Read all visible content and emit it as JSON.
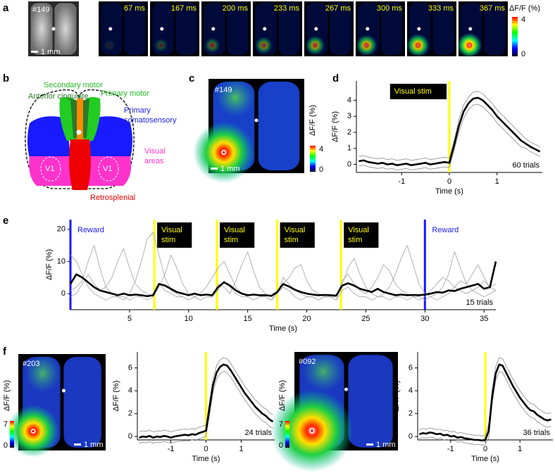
{
  "panel_labels": [
    "a",
    "b",
    "c",
    "d",
    "e",
    "f"
  ],
  "panel_a": {
    "reference": {
      "mouse_id": "#149",
      "scale_bar": "1 mm"
    },
    "frames": [
      "67 ms",
      "167 ms",
      "200 ms",
      "233 ms",
      "267 ms",
      "300 ms",
      "333 ms",
      "367 ms"
    ],
    "colorbar": {
      "label": "ΔF/F (%)",
      "max": 4,
      "min": 0
    }
  },
  "panel_b": {
    "secondary_motor": "Secondary motor",
    "anterior_cingulate": "Anterior cingulate",
    "primary_motor": "Primary motor",
    "somatosensory": [
      "Primary",
      "somatosensory"
    ],
    "visual": [
      "Visual",
      "areas"
    ],
    "v1": [
      "V1",
      "V1"
    ],
    "retrosplenial": "Retrosplenial"
  },
  "panel_c": {
    "mouse_id": "#149",
    "scale_bar": "1 mm",
    "colorbar": {
      "label": "ΔF/F (%)",
      "max": 4,
      "min": 0
    }
  },
  "panel_f": [
    {
      "mouse_id": "#203",
      "scale_bar": "1 mm",
      "colorbar": {
        "label": "ΔF/F (%)",
        "max": 7,
        "min": 0
      }
    },
    {
      "mouse_id": "#092",
      "scale_bar": "1 mm",
      "colorbar": {
        "label": "ΔF/F (%)",
        "max": 7,
        "min": 0
      }
    }
  ],
  "chart_data": [
    {
      "type": "line",
      "xlabel": "Time (s)",
      "ylabel": "ΔF/F (%)",
      "note": "60 trials",
      "xlim": [
        -1.95,
        1.95
      ],
      "ylim": [
        -0.5,
        5.2
      ],
      "xticks": [
        -1,
        0,
        1
      ],
      "yticks": [
        0,
        1,
        2,
        3,
        4
      ],
      "vlines": [
        {
          "x": 0,
          "color": "#ffff00",
          "label_lines": [
            "Visual stim"
          ],
          "boxed": true,
          "label_side": "left"
        }
      ],
      "x": [
        -1.9,
        -1.8,
        -1.7,
        -1.6,
        -1.5,
        -1.4,
        -1.3,
        -1.2,
        -1.1,
        -1,
        -0.9,
        -0.8,
        -0.7,
        -0.6,
        -0.5,
        -0.4,
        -0.3,
        -0.2,
        -0.1,
        0,
        0.1,
        0.2,
        0.3,
        0.4,
        0.5,
        0.6,
        0.7,
        0.8,
        0.9,
        1,
        1.1,
        1.2,
        1.3,
        1.4,
        1.5,
        1.6,
        1.7,
        1.8,
        1.9
      ],
      "series": [
        {
          "color": "#888888",
          "values": [
            0.5,
            0.55,
            0.45,
            0.4,
            0.35,
            0.4,
            0.3,
            0.35,
            0.25,
            0.3,
            0.35,
            0.25,
            0.3,
            0.35,
            0.4,
            0.3,
            0.35,
            0.4,
            0.45,
            0.4,
            1.5,
            2.8,
            3.7,
            4.2,
            4.5,
            4.55,
            4.4,
            4.1,
            3.8,
            3.4,
            3.1,
            2.8,
            2.5,
            2.2,
            1.9,
            1.6,
            1.4,
            1.25,
            1.1
          ]
        },
        {
          "color": "#888888",
          "values": [
            -0.1,
            -0.05,
            -0.15,
            -0.2,
            -0.25,
            -0.2,
            -0.3,
            -0.25,
            -0.35,
            -0.3,
            -0.25,
            -0.35,
            -0.3,
            -0.25,
            -0.2,
            -0.3,
            -0.25,
            -0.2,
            -0.15,
            -0.2,
            0.9,
            2,
            2.9,
            3.4,
            3.7,
            3.75,
            3.6,
            3.3,
            3,
            2.6,
            2.3,
            2,
            1.7,
            1.4,
            1.1,
            1,
            0.8,
            0.65,
            0.5
          ]
        },
        {
          "color": "#000000",
          "values": [
            0.2,
            0.25,
            0.15,
            0.1,
            0.05,
            0.1,
            0,
            0.05,
            -0.05,
            0,
            0.05,
            -0.05,
            0,
            0.05,
            0.1,
            0,
            0.05,
            0.1,
            0.15,
            0.1,
            1.2,
            2.4,
            3.3,
            3.8,
            4.1,
            4.15,
            4,
            3.7,
            3.4,
            3,
            2.7,
            2.4,
            2.1,
            1.8,
            1.5,
            1.3,
            1.1,
            0.95,
            0.8
          ]
        }
      ]
    },
    {
      "type": "line",
      "xlabel": "Time (s)",
      "ylabel": "ΔF/F (%)",
      "note": "15 trials",
      "xlim": [
        0,
        36
      ],
      "ylim": [
        -5,
        23
      ],
      "xticks": [
        5,
        10,
        15,
        20,
        25,
        30,
        35
      ],
      "yticks": [
        0,
        10,
        20
      ],
      "vlines": [
        {
          "x": 0,
          "color": "#1a1aff",
          "label_lines": [
            "Reward"
          ],
          "boxed": false,
          "label_side": "right"
        },
        {
          "x": 7.1,
          "color": "#ffff00",
          "label_lines": [
            "Visual",
            "stim"
          ],
          "boxed": true,
          "label_side": "right"
        },
        {
          "x": 12.4,
          "color": "#ffff00",
          "label_lines": [
            "Visual",
            "stim"
          ],
          "boxed": true,
          "label_side": "right"
        },
        {
          "x": 17.5,
          "color": "#ffff00",
          "label_lines": [
            "Visual",
            "stim"
          ],
          "boxed": true,
          "label_side": "right"
        },
        {
          "x": 22.9,
          "color": "#ffff00",
          "label_lines": [
            "Visual",
            "stim"
          ],
          "boxed": true,
          "label_side": "right"
        },
        {
          "x": 30,
          "color": "#1a1aff",
          "label_lines": [
            "Reward"
          ],
          "boxed": false,
          "label_side": "right"
        }
      ],
      "x": [
        0,
        0.5,
        1,
        1.5,
        2,
        2.5,
        3,
        3.5,
        4,
        4.5,
        5,
        5.5,
        6,
        6.5,
        7,
        7.5,
        8,
        8.5,
        9,
        9.5,
        10,
        10.5,
        11,
        11.5,
        12,
        12.5,
        13,
        13.5,
        14,
        14.5,
        15,
        15.5,
        16,
        16.5,
        17,
        17.5,
        18,
        18.5,
        19,
        19.5,
        20,
        20.5,
        21,
        21.5,
        22,
        22.5,
        23,
        23.5,
        24,
        24.5,
        25,
        25.5,
        26,
        26.5,
        27,
        27.5,
        28,
        28.5,
        29,
        29.5,
        30,
        30.5,
        31,
        31.5,
        32,
        32.5,
        33,
        33.5,
        34,
        34.5,
        35,
        35.5,
        36
      ],
      "series": [
        {
          "color": "#a0a0a0",
          "values": [
            1,
            2,
            4,
            10,
            15,
            8,
            2,
            0,
            -1,
            -1,
            -2,
            -1,
            -1,
            -2,
            -1,
            2,
            6,
            12,
            8,
            3,
            0,
            -1,
            -2,
            -1,
            -1,
            1,
            4,
            2,
            0,
            -1,
            -1,
            -2,
            -1,
            -1,
            -2,
            0,
            5,
            3,
            1,
            0,
            -1,
            -1,
            -2,
            -1,
            -1,
            -2,
            3,
            8,
            11,
            6,
            2,
            0,
            -1,
            -1,
            -2,
            -1,
            -1,
            -2,
            -1,
            -1,
            -2,
            -1,
            0,
            2,
            6,
            13,
            8,
            3,
            1,
            0,
            -1,
            0,
            1
          ]
        },
        {
          "color": "#a0a0a0",
          "values": [
            -1,
            0,
            3,
            6,
            3,
            1,
            2,
            5,
            10,
            14,
            8,
            3,
            1,
            0,
            -1,
            3,
            1,
            0,
            -1,
            -1,
            -2,
            -1,
            0,
            2,
            5,
            8,
            10,
            6,
            2,
            0,
            -1,
            -2,
            -1,
            -1,
            -2,
            1,
            3,
            5,
            8,
            9,
            4,
            1,
            0,
            -1,
            -1,
            -2,
            1,
            2,
            0,
            -1,
            -1,
            -2,
            -1,
            0,
            2,
            6,
            11,
            15,
            9,
            3,
            0,
            -1,
            -2,
            -1,
            0,
            2,
            4,
            3,
            6,
            9,
            5,
            2,
            3
          ]
        },
        {
          "color": "#a0a0a0",
          "values": [
            12,
            10,
            6,
            2,
            0,
            -1,
            -2,
            -1,
            -1,
            -2,
            0,
            4,
            10,
            17,
            19,
            12,
            5,
            1,
            0,
            -1,
            -2,
            -1,
            -2,
            -1,
            -1,
            3,
            2,
            0,
            4,
            9,
            13,
            7,
            2,
            0,
            -1,
            0,
            2,
            1,
            -1,
            -2,
            -1,
            -1,
            -2,
            -1,
            -1,
            -1,
            4,
            6,
            3,
            1,
            0,
            2,
            5,
            9,
            7,
            3,
            1,
            0,
            -1,
            -2,
            -1,
            1,
            3,
            5,
            4,
            2,
            1,
            0,
            1,
            2,
            4,
            2,
            1
          ]
        },
        {
          "color": "#000000",
          "values": [
            3,
            6,
            5,
            3.5,
            2,
            1,
            0.5,
            0,
            -0.5,
            0,
            -0.5,
            -0.3,
            -0.5,
            -0.8,
            -0.5,
            3,
            2.5,
            1.5,
            0.5,
            0,
            -0.5,
            0,
            -0.5,
            -0.3,
            -0.5,
            2,
            3.5,
            2.5,
            1,
            0,
            -0.5,
            -0.3,
            -0.5,
            -0.5,
            -0.7,
            0.5,
            3,
            2.2,
            1.2,
            0.5,
            0,
            -0.3,
            -0.5,
            -0.4,
            -0.5,
            -0.6,
            2.5,
            3.2,
            2.5,
            1.5,
            1,
            0.5,
            1.5,
            0.5,
            0,
            -0.5,
            -0.3,
            -0.5,
            -0.4,
            -0.5,
            -0.3,
            0,
            0.5,
            0.3,
            1,
            0.8,
            1.5,
            2,
            2.5,
            3,
            1.5,
            2,
            10
          ]
        }
      ]
    },
    {
      "type": "line",
      "xlabel": "Time (s)",
      "ylabel": "ΔF/F (%)",
      "note": "24 trials",
      "xlim": [
        -1.95,
        1.95
      ],
      "ylim": [
        -0.3,
        7.4
      ],
      "xticks": [
        -1,
        0,
        1
      ],
      "yticks": [
        0,
        2,
        4,
        6
      ],
      "vlines": [
        {
          "x": 0,
          "color": "#ffff00"
        }
      ],
      "x": [
        -1.9,
        -1.8,
        -1.7,
        -1.6,
        -1.5,
        -1.4,
        -1.3,
        -1.2,
        -1.1,
        -1,
        -0.9,
        -0.8,
        -0.7,
        -0.6,
        -0.5,
        -0.4,
        -0.3,
        -0.2,
        -0.1,
        0,
        0.1,
        0.2,
        0.3,
        0.4,
        0.5,
        0.6,
        0.7,
        0.8,
        0.9,
        1,
        1.1,
        1.2,
        1.3,
        1.4,
        1.5,
        1.6,
        1.7,
        1.8,
        1.9
      ],
      "series": [
        {
          "color": "#888888",
          "values": [
            0.4,
            0.5,
            0.45,
            0.55,
            0.4,
            0.5,
            0.45,
            0.55,
            0.5,
            0.4,
            0.5,
            0.55,
            0.6,
            0.65,
            0.6,
            0.7,
            0.65,
            0.8,
            0.9,
            1,
            3.1,
            5.1,
            6.2,
            6.7,
            6.9,
            6.8,
            6.4,
            5.9,
            5.4,
            4.9,
            4.4,
            4,
            3.6,
            3.2,
            2.9,
            2.6,
            2.4,
            2.1,
            1.9
          ]
        },
        {
          "color": "#888888",
          "values": [
            -0.6,
            -0.5,
            -0.55,
            -0.45,
            -0.6,
            -0.5,
            -0.55,
            -0.45,
            -0.5,
            -0.6,
            -0.5,
            -0.45,
            -0.4,
            -0.35,
            -0.4,
            -0.3,
            -0.35,
            -0.2,
            -0.1,
            0,
            1.9,
            3.9,
            5,
            5.5,
            5.7,
            5.6,
            5.2,
            4.7,
            4.2,
            3.7,
            3.2,
            2.8,
            2.4,
            2,
            1.7,
            1.4,
            1.2,
            0.9,
            0.7
          ]
        },
        {
          "color": "#000000",
          "values": [
            -0.1,
            0,
            -0.05,
            0.05,
            -0.1,
            0,
            -0.05,
            0.05,
            0,
            -0.1,
            0,
            0.05,
            0.1,
            0.15,
            0.1,
            0.2,
            0.15,
            0.3,
            0.4,
            0.5,
            2.5,
            4.5,
            5.6,
            6.1,
            6.3,
            6.2,
            5.8,
            5.3,
            4.8,
            4.3,
            3.8,
            3.4,
            3,
            2.6,
            2.3,
            2,
            1.8,
            1.5,
            1.3
          ]
        }
      ]
    },
    {
      "type": "line",
      "xlabel": "Time (s)",
      "ylabel": "ΔF/F (%)",
      "note": "36 trials",
      "xlim": [
        -1.95,
        1.95
      ],
      "ylim": [
        -0.3,
        7.4
      ],
      "xticks": [
        -1,
        0,
        1
      ],
      "yticks": [
        0,
        2,
        4,
        6
      ],
      "vlines": [
        {
          "x": 0,
          "color": "#ffff00"
        }
      ],
      "x": [
        -1.9,
        -1.8,
        -1.7,
        -1.6,
        -1.5,
        -1.4,
        -1.3,
        -1.2,
        -1.1,
        -1,
        -0.9,
        -0.8,
        -0.7,
        -0.6,
        -0.5,
        -0.4,
        -0.3,
        -0.2,
        -0.1,
        0,
        0.1,
        0.2,
        0.3,
        0.4,
        0.5,
        0.6,
        0.7,
        0.8,
        0.9,
        1,
        1.1,
        1.2,
        1.3,
        1.4,
        1.5,
        1.6,
        1.7,
        1.8,
        1.9
      ],
      "series": [
        {
          "color": "#888888",
          "values": [
            0.6,
            0.7,
            0.65,
            0.75,
            0.7,
            0.6,
            0.65,
            0.5,
            0.55,
            0.4,
            0.45,
            0.3,
            0.35,
            0.25,
            0.2,
            0.15,
            0.1,
            0.1,
            0.05,
            0.1,
            1.1,
            4.1,
            6.1,
            6.9,
            6.8,
            6.2,
            5.6,
            5,
            4.5,
            4,
            3.6,
            3.2,
            2.9,
            2.8,
            2.5,
            2.3,
            2.1,
            2,
            2.1
          ]
        },
        {
          "color": "#888888",
          "values": [
            -0.2,
            -0.1,
            -0.15,
            -0.05,
            -0.1,
            -0.2,
            -0.15,
            -0.3,
            -0.25,
            -0.4,
            -0.35,
            -0.5,
            -0.45,
            -0.55,
            -0.6,
            -0.65,
            -0.7,
            -0.7,
            -0.75,
            -0.7,
            -0.1,
            2.9,
            4.9,
            5.7,
            5.6,
            5,
            4.4,
            3.8,
            3.3,
            2.8,
            2.4,
            2,
            1.7,
            1.6,
            1.3,
            1.1,
            0.9,
            0.8,
            0.9
          ]
        },
        {
          "color": "#000000",
          "values": [
            0.2,
            0.3,
            0.25,
            0.35,
            0.3,
            0.2,
            0.25,
            0.1,
            0.15,
            0,
            0.05,
            -0.1,
            -0.05,
            -0.15,
            -0.2,
            -0.25,
            -0.3,
            -0.3,
            -0.35,
            -0.3,
            0.5,
            3.5,
            5.5,
            6.3,
            6.2,
            5.6,
            5,
            4.4,
            3.9,
            3.4,
            3,
            2.6,
            2.3,
            2.2,
            1.9,
            1.7,
            1.5,
            1.4,
            1.5
          ]
        }
      ]
    }
  ]
}
